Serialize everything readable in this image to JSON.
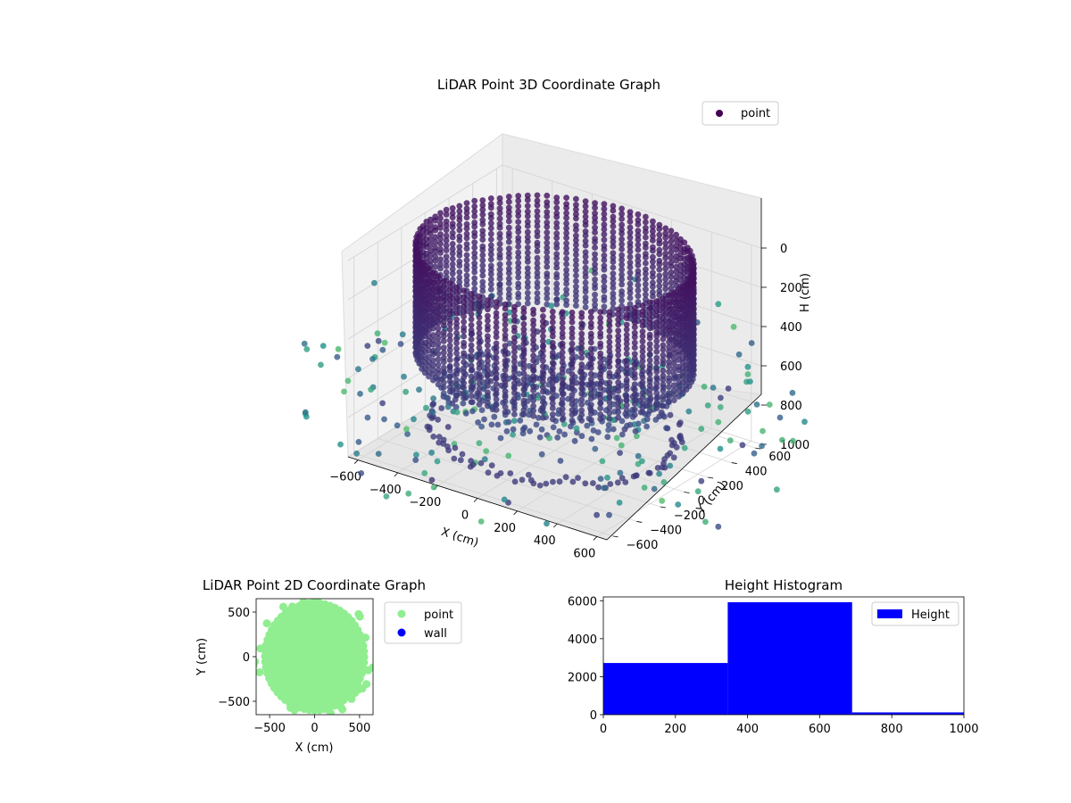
{
  "chart_data": [
    {
      "type": "scatter",
      "title": "LiDAR Point 3D Coordinate Graph",
      "xlabel": "X (cm)",
      "ylabel": "Y (cm)",
      "zlabel": "H (cm)",
      "xlim": [
        -650,
        650
      ],
      "ylim": [
        -650,
        650
      ],
      "zlim": [
        1000,
        0
      ],
      "x_ticks": [
        -600,
        -400,
        -200,
        0,
        200,
        400,
        600
      ],
      "y_ticks": [
        -600,
        -400,
        -200,
        0,
        200,
        400,
        600
      ],
      "z_ticks": [
        0,
        200,
        400,
        600,
        800,
        1000
      ],
      "legend": {
        "placement": "top-right",
        "entries": [
          "point"
        ]
      },
      "grid": true,
      "colormap": "viridis",
      "series": [
        {
          "name": "point",
          "components": [
            {
              "shape": "cylinder-wall",
              "radius": 600,
              "h_range": [
                0,
                550
              ]
            },
            {
              "shape": "disc",
              "radius": 500,
              "h": 700
            },
            {
              "shape": "ring",
              "radius": 530,
              "h": 900
            },
            {
              "shape": "scatter",
              "radius_range": [
                300,
                1100
              ],
              "h_range": [
                500,
                1000
              ]
            }
          ]
        }
      ]
    },
    {
      "type": "scatter",
      "title": "LiDAR Point 2D Coordinate Graph",
      "xlabel": "X (cm)",
      "ylabel": "Y (cm)",
      "xlim": [
        -650,
        650
      ],
      "ylim": [
        -650,
        650
      ],
      "x_ticks": [
        -500,
        0,
        500
      ],
      "y_ticks": [
        -500,
        0,
        500
      ],
      "legend": {
        "placement": "outside-right",
        "entries": [
          "point",
          "wall"
        ]
      },
      "series": [
        {
          "name": "point",
          "color": "#90ee90",
          "extent_radius": 600
        },
        {
          "name": "wall",
          "color": "#0000ff"
        }
      ]
    },
    {
      "type": "bar",
      "title": "Height Histogram",
      "xlabel": "",
      "ylabel": "",
      "xlim": [
        0,
        1000
      ],
      "ylim": [
        0,
        6200
      ],
      "x_ticks": [
        0,
        200,
        400,
        600,
        800,
        1000
      ],
      "y_ticks": [
        0,
        2000,
        4000,
        6000
      ],
      "legend": {
        "placement": "top-right",
        "entries": [
          "Height"
        ]
      },
      "series": [
        {
          "name": "Height",
          "color": "#0000ff",
          "bins": [
            {
              "from": 0,
              "to": 345,
              "count": 2720
            },
            {
              "from": 345,
              "to": 690,
              "count": 5920
            },
            {
              "from": 690,
              "to": 1035,
              "count": 120
            }
          ]
        }
      ]
    }
  ]
}
